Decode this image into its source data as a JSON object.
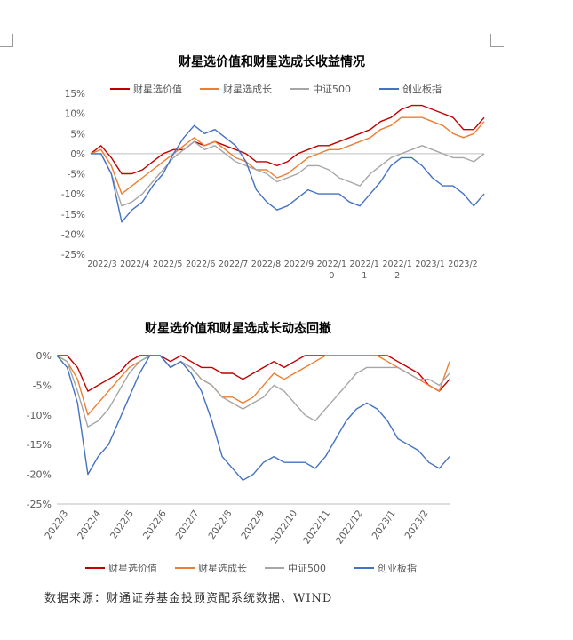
{
  "source_note": "数据来源：财通证券基金投顾资配系统数据、WIND",
  "chart_data": [
    {
      "type": "line",
      "title": "财星选价值和财星选成长收益情况",
      "xlabel": "",
      "ylabel": "",
      "ylim": [
        -0.25,
        0.15
      ],
      "yticks": [
        "15%",
        "10%",
        "5%",
        "0%",
        "-5%",
        "-10%",
        "-15%",
        "-20%",
        "-25%"
      ],
      "x_ticks": [
        "2022/3",
        "2022/4",
        "2022/5",
        "2022/6",
        "2022/7",
        "2022/8",
        "2022/9",
        "2022/10",
        "2022/11",
        "2022/12",
        "2023/1",
        "2023/2"
      ],
      "legend_position": "top",
      "series": [
        {
          "name": "财星选价值",
          "color": "#c00000",
          "values": [
            0.0,
            0.02,
            -0.01,
            -0.05,
            -0.05,
            -0.04,
            -0.02,
            0.0,
            0.01,
            0.01,
            0.03,
            0.02,
            0.03,
            0.02,
            0.01,
            0.0,
            -0.02,
            -0.02,
            -0.03,
            -0.02,
            0.0,
            0.01,
            0.02,
            0.02,
            0.03,
            0.04,
            0.05,
            0.06,
            0.08,
            0.09,
            0.11,
            0.12,
            0.12,
            0.11,
            0.1,
            0.09,
            0.06,
            0.06,
            0.09
          ]
        },
        {
          "name": "财星选成长",
          "color": "#ed7d31",
          "values": [
            0.0,
            0.01,
            -0.03,
            -0.1,
            -0.08,
            -0.06,
            -0.04,
            -0.02,
            0.0,
            0.02,
            0.04,
            0.02,
            0.03,
            0.01,
            -0.01,
            -0.02,
            -0.04,
            -0.04,
            -0.06,
            -0.05,
            -0.03,
            -0.01,
            0.0,
            0.01,
            0.01,
            0.02,
            0.03,
            0.04,
            0.06,
            0.07,
            0.09,
            0.09,
            0.09,
            0.08,
            0.07,
            0.05,
            0.04,
            0.05,
            0.08
          ]
        },
        {
          "name": "中证500",
          "color": "#a6a6a6",
          "values": [
            0.0,
            0.0,
            -0.05,
            -0.13,
            -0.12,
            -0.1,
            -0.07,
            -0.04,
            -0.01,
            0.01,
            0.03,
            0.01,
            0.02,
            0.0,
            -0.02,
            -0.03,
            -0.04,
            -0.05,
            -0.07,
            -0.06,
            -0.05,
            -0.03,
            -0.03,
            -0.04,
            -0.06,
            -0.07,
            -0.08,
            -0.05,
            -0.03,
            -0.01,
            0.0,
            0.01,
            0.02,
            0.01,
            0.0,
            -0.01,
            -0.01,
            -0.02,
            0.0
          ]
        },
        {
          "name": "创业板指",
          "color": "#4472c4",
          "values": [
            0.0,
            0.0,
            -0.05,
            -0.17,
            -0.14,
            -0.12,
            -0.08,
            -0.05,
            0.0,
            0.04,
            0.07,
            0.05,
            0.06,
            0.04,
            0.02,
            -0.02,
            -0.09,
            -0.12,
            -0.14,
            -0.13,
            -0.11,
            -0.09,
            -0.1,
            -0.1,
            -0.1,
            -0.12,
            -0.13,
            -0.1,
            -0.07,
            -0.03,
            -0.01,
            -0.01,
            -0.03,
            -0.06,
            -0.08,
            -0.08,
            -0.1,
            -0.13,
            -0.1
          ]
        }
      ]
    },
    {
      "type": "line",
      "title": "财星选价值和财星选成长动态回撤",
      "xlabel": "",
      "ylabel": "",
      "ylim": [
        -0.25,
        0.0
      ],
      "yticks": [
        "0%",
        "-5%",
        "-10%",
        "-15%",
        "-20%",
        "-25%"
      ],
      "x_ticks": [
        "2022/3",
        "2022/4",
        "2022/5",
        "2022/6",
        "2022/7",
        "2022/8",
        "2022/9",
        "2022/10",
        "2022/11",
        "2022/12",
        "2023/1",
        "2023/2"
      ],
      "legend_position": "bottom",
      "series": [
        {
          "name": "财星选价值",
          "color": "#c00000",
          "values": [
            0.0,
            0.0,
            -0.02,
            -0.06,
            -0.05,
            -0.04,
            -0.03,
            -0.01,
            0.0,
            0.0,
            0.0,
            -0.01,
            0.0,
            -0.01,
            -0.02,
            -0.02,
            -0.03,
            -0.03,
            -0.04,
            -0.03,
            -0.02,
            -0.01,
            -0.02,
            -0.01,
            0.0,
            0.0,
            0.0,
            0.0,
            0.0,
            0.0,
            0.0,
            0.0,
            0.0,
            -0.01,
            -0.02,
            -0.03,
            -0.05,
            -0.06,
            -0.04
          ]
        },
        {
          "name": "财星选成长",
          "color": "#ed7d31",
          "values": [
            0.0,
            -0.01,
            -0.04,
            -0.1,
            -0.08,
            -0.06,
            -0.04,
            -0.02,
            -0.01,
            0.0,
            0.0,
            -0.02,
            -0.01,
            -0.02,
            -0.04,
            -0.05,
            -0.07,
            -0.07,
            -0.08,
            -0.07,
            -0.05,
            -0.03,
            -0.04,
            -0.03,
            -0.02,
            -0.01,
            0.0,
            0.0,
            0.0,
            0.0,
            0.0,
            0.0,
            -0.01,
            -0.02,
            -0.03,
            -0.04,
            -0.05,
            -0.06,
            -0.01
          ]
        },
        {
          "name": "中证500",
          "color": "#a6a6a6",
          "values": [
            0.0,
            -0.01,
            -0.06,
            -0.12,
            -0.11,
            -0.09,
            -0.06,
            -0.03,
            -0.01,
            0.0,
            0.0,
            -0.02,
            -0.01,
            -0.02,
            -0.04,
            -0.05,
            -0.07,
            -0.08,
            -0.09,
            -0.08,
            -0.07,
            -0.05,
            -0.06,
            -0.08,
            -0.1,
            -0.11,
            -0.09,
            -0.07,
            -0.05,
            -0.03,
            -0.02,
            -0.02,
            -0.02,
            -0.02,
            -0.03,
            -0.04,
            -0.04,
            -0.05,
            -0.03
          ]
        },
        {
          "name": "创业板指",
          "color": "#4472c4",
          "values": [
            0.0,
            -0.02,
            -0.08,
            -0.2,
            -0.17,
            -0.15,
            -0.11,
            -0.07,
            -0.03,
            0.0,
            0.0,
            -0.02,
            -0.01,
            -0.03,
            -0.06,
            -0.11,
            -0.17,
            -0.19,
            -0.21,
            -0.2,
            -0.18,
            -0.17,
            -0.18,
            -0.18,
            -0.18,
            -0.19,
            -0.17,
            -0.14,
            -0.11,
            -0.09,
            -0.08,
            -0.09,
            -0.11,
            -0.14,
            -0.15,
            -0.16,
            -0.18,
            -0.19,
            -0.17
          ]
        }
      ]
    }
  ]
}
